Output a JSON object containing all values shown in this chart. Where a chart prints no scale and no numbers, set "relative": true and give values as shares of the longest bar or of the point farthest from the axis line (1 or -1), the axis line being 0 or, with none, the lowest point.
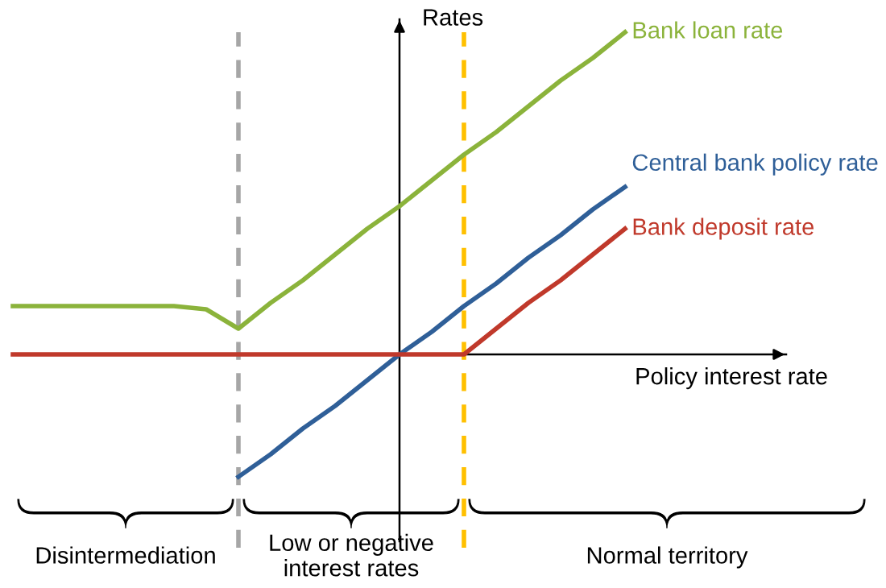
{
  "chart_data": {
    "type": "line",
    "relative": true,
    "xlabel": "Policy interest rate",
    "ylabel": "Rates",
    "categories": [
      null,
      null,
      null,
      null,
      null,
      null,
      null,
      null,
      null,
      null,
      null,
      null,
      null,
      null,
      null,
      null,
      null,
      null,
      null,
      null
    ],
    "series": [
      {
        "name": "Bank loan rate",
        "color": "#8bb33b",
        "values": [
          0.15,
          0.15,
          0.15,
          0.15,
          0.15,
          0.15,
          0.14,
          0.08,
          0.16,
          0.23,
          0.31,
          0.39,
          0.46,
          0.54,
          0.62,
          0.69,
          0.77,
          0.85,
          0.92,
          1.0
        ]
      },
      {
        "name": "Central bank policy rate",
        "color": "#2f5f98",
        "values": [
          null,
          null,
          null,
          null,
          null,
          null,
          null,
          -0.38,
          -0.31,
          -0.23,
          -0.16,
          -0.08,
          0,
          0.07,
          0.15,
          0.22,
          0.3,
          0.37,
          0.45,
          0.52
        ]
      },
      {
        "name": "Bank deposit rate",
        "color": "#c0392b",
        "values": [
          0,
          0,
          0,
          0,
          0,
          0,
          0,
          0,
          0,
          0,
          0,
          0,
          0,
          0,
          0,
          0.08,
          0.16,
          0.23,
          0.31,
          0.39
        ]
      }
    ],
    "annotations": [
      "Disintermediation",
      "Low or negative\ninterest rates",
      "Normal territory"
    ]
  }
}
